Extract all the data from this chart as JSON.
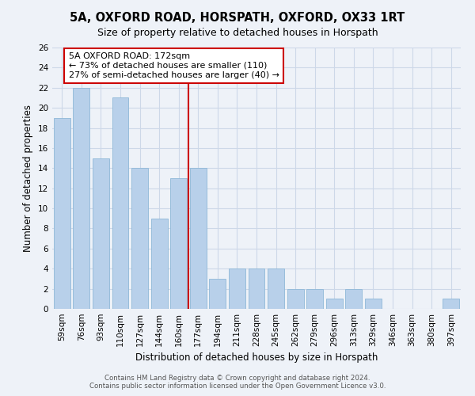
{
  "title": "5A, OXFORD ROAD, HORSPATH, OXFORD, OX33 1RT",
  "subtitle": "Size of property relative to detached houses in Horspath",
  "xlabel": "Distribution of detached houses by size in Horspath",
  "ylabel": "Number of detached properties",
  "footnote1": "Contains HM Land Registry data © Crown copyright and database right 2024.",
  "footnote2": "Contains public sector information licensed under the Open Government Licence v3.0.",
  "categories": [
    "59sqm",
    "76sqm",
    "93sqm",
    "110sqm",
    "127sqm",
    "144sqm",
    "160sqm",
    "177sqm",
    "194sqm",
    "211sqm",
    "228sqm",
    "245sqm",
    "262sqm",
    "279sqm",
    "296sqm",
    "313sqm",
    "329sqm",
    "346sqm",
    "363sqm",
    "380sqm",
    "397sqm"
  ],
  "values": [
    19,
    22,
    15,
    21,
    14,
    9,
    13,
    14,
    3,
    4,
    4,
    4,
    2,
    2,
    1,
    2,
    1,
    0,
    0,
    0,
    1
  ],
  "bar_color": "#b8d0ea",
  "bar_edge_color": "#8fb8d8",
  "grid_color": "#cdd8e8",
  "background_color": "#eef2f8",
  "vline_color": "#cc0000",
  "vline_xindex": 6.5,
  "annotation_text": "5A OXFORD ROAD: 172sqm\n← 73% of detached houses are smaller (110)\n27% of semi-detached houses are larger (40) →",
  "annotation_box_edge": "#cc0000",
  "ylim": [
    0,
    26
  ],
  "yticks": [
    0,
    2,
    4,
    6,
    8,
    10,
    12,
    14,
    16,
    18,
    20,
    22,
    24,
    26
  ],
  "title_fontsize": 10.5,
  "subtitle_fontsize": 9,
  "annotation_fontsize": 8,
  "ylabel_fontsize": 8.5,
  "xlabel_fontsize": 8.5,
  "tick_fontsize": 7.5
}
